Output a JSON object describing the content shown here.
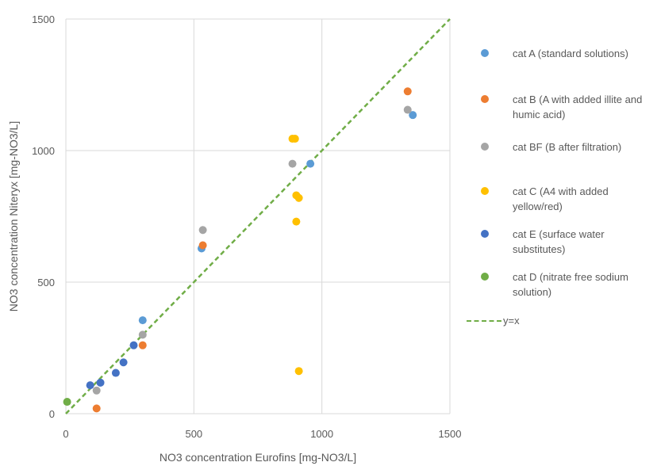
{
  "chart_data": {
    "type": "scatter",
    "title": "",
    "xlabel": "NO3 concentration Eurofins [mg-NO3/L]",
    "ylabel": "NO3 concentration Niteryx [mg-NO3/L]",
    "xlim": [
      0,
      1500
    ],
    "ylim": [
      0,
      1500
    ],
    "xticks": [
      "0",
      "500",
      "1000",
      "1500"
    ],
    "yticks": [
      "0",
      "500",
      "1000",
      "1500"
    ],
    "grid": true,
    "legend_position": "right",
    "series": [
      {
        "name": "cat A (standard solutions)",
        "color": "#5b9bd5",
        "points": [
          [
            300,
            355
          ],
          [
            530,
            628
          ],
          [
            955,
            950
          ],
          [
            1355,
            1135
          ]
        ]
      },
      {
        "name": "cat B (A with added illite and humic acid)",
        "color": "#ed7d31",
        "points": [
          [
            120,
            20
          ],
          [
            300,
            260
          ],
          [
            535,
            640
          ],
          [
            1335,
            1225
          ]
        ]
      },
      {
        "name": "cat BF (B after filtration)",
        "color": "#a5a5a5",
        "points": [
          [
            120,
            88
          ],
          [
            300,
            300
          ],
          [
            535,
            698
          ],
          [
            885,
            950
          ],
          [
            1335,
            1155
          ]
        ]
      },
      {
        "name": "cat C (A4 with added yellow/red)",
        "color": "#ffc000",
        "points": [
          [
            885,
            1045
          ],
          [
            895,
            1045
          ],
          [
            900,
            830
          ],
          [
            910,
            820
          ],
          [
            900,
            730
          ],
          [
            910,
            162
          ]
        ]
      },
      {
        "name": "cat E (surface water substitutes)",
        "color": "#4472c4",
        "points": [
          [
            95,
            108
          ],
          [
            135,
            118
          ],
          [
            195,
            155
          ],
          [
            225,
            195
          ],
          [
            265,
            260
          ]
        ]
      },
      {
        "name": "cat D (nitrate free sodium solution)",
        "color": "#70ad47",
        "points": [
          [
            5,
            45
          ]
        ]
      }
    ],
    "reference_line": {
      "name": "y=x",
      "color": "#70ad47",
      "from": [
        0,
        0
      ],
      "to": [
        1500,
        1500
      ]
    }
  }
}
